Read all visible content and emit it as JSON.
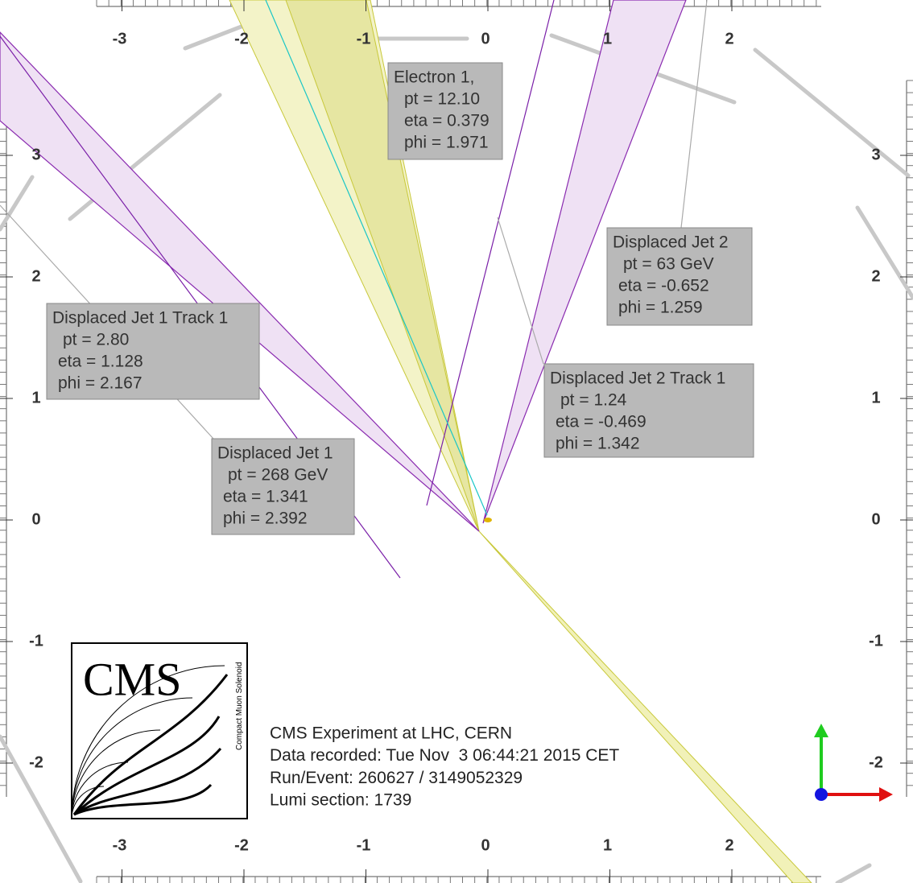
{
  "axes": {
    "x_ticks": [
      -3,
      -2,
      -1,
      0,
      1,
      2
    ],
    "y_ticks": [
      3,
      2,
      1,
      0,
      -1,
      -2
    ]
  },
  "annotations": [
    {
      "lines": [
        "Electron 1,",
        "pt = 12.10",
        "eta = 0.379",
        "phi = 1.971"
      ]
    },
    {
      "lines": [
        "Displaced Jet 2",
        "pt = 63 GeV",
        "eta = -0.652",
        "phi = 1.259"
      ]
    },
    {
      "lines": [
        "Displaced Jet 1 Track 1",
        "pt = 2.80",
        "eta = 1.128",
        "phi = 2.167"
      ]
    },
    {
      "lines": [
        "Displaced Jet 2 Track 1",
        "pt = 1.24",
        "eta = -0.469",
        "phi = 1.342"
      ]
    },
    {
      "lines": [
        "Displaced Jet 1",
        "pt = 268 GeV",
        "eta = 1.341",
        "phi = 2.392"
      ]
    }
  ],
  "info": [
    "CMS Experiment at LHC, CERN",
    "Data recorded: Tue Nov  3 06:44:21 2015 CET",
    "Run/Event: 260627 / 3149052329",
    "Lumi section: 1739"
  ],
  "logo": {
    "text": "CMS",
    "subtitle": "Compact Muon Solenoid"
  }
}
